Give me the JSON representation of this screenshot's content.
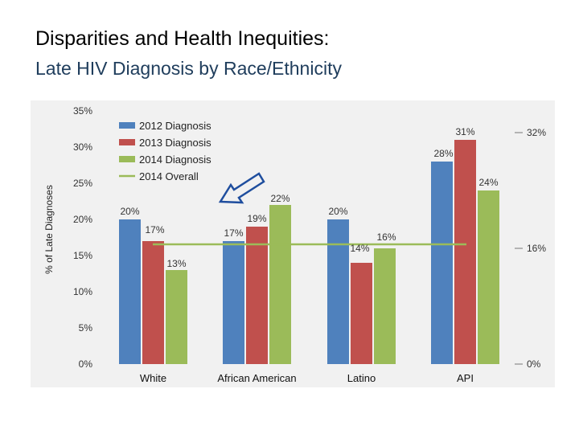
{
  "header": {
    "title": "Disparities and Health Inequities:",
    "subtitle": "Late HIV Diagnosis by Race/Ethnicity"
  },
  "chart_data": {
    "type": "bar",
    "categories": [
      "White",
      "African American",
      "Latino",
      "API"
    ],
    "series": [
      {
        "name": "2012 Diagnosis",
        "color": "#4f81bd",
        "values": [
          20,
          17,
          20,
          28
        ],
        "labels": [
          "20%",
          "17%",
          "20%",
          "28%"
        ]
      },
      {
        "name": "2013 Diagnosis",
        "color": "#c0504d",
        "values": [
          17,
          19,
          14,
          31
        ],
        "labels": [
          "17%",
          "19%",
          "14%",
          "31%"
        ]
      },
      {
        "name": "2014 Diagnosis",
        "color": "#9bbb59",
        "values": [
          13,
          22,
          16,
          24
        ],
        "labels": [
          "13%",
          "22%",
          "16%",
          "24%"
        ]
      }
    ],
    "overall": {
      "name": "2014 Overall",
      "color": "#9bbb59",
      "value": 16
    },
    "ylabel": "% of Late Diagnoses",
    "ylim": [
      0,
      35
    ],
    "yticks": [
      "0%",
      "5%",
      "10%",
      "15%",
      "20%",
      "25%",
      "30%",
      "35%"
    ],
    "right_axis_labels": [
      {
        "value": 32,
        "text": "32%"
      },
      {
        "value": 16,
        "text": "16%"
      },
      {
        "value": 0,
        "text": "0%"
      }
    ]
  }
}
